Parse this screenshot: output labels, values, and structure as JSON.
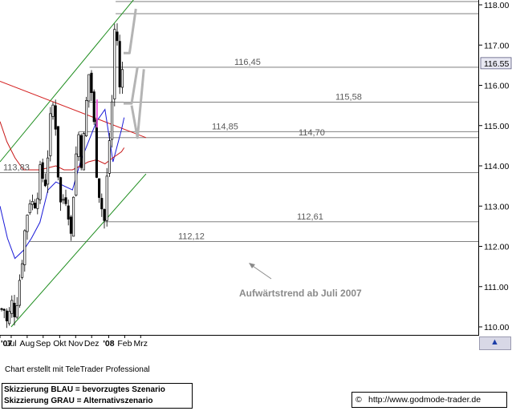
{
  "chart_data": {
    "type": "candlestick",
    "instrument_series": "Bund Future",
    "x_tick_labels": [
      "'07",
      "Jul",
      "Aug",
      "Sep",
      "Okt",
      "Nov",
      "Dez",
      "'08",
      "Feb",
      "Mrz"
    ],
    "y_tick_labels": [
      "110.00",
      "111.00",
      "112.00",
      "113.00",
      "114.00",
      "115.00",
      "116.00",
      "117.00",
      "118.00"
    ],
    "ylim": [
      109.9,
      118.1
    ],
    "last_price": "116.55",
    "price_path": [
      [
        "2007-06-18",
        110.4
      ],
      [
        "2007-06-25",
        110.5
      ],
      [
        "2007-07-02",
        110.0
      ],
      [
        "2007-07-09",
        110.6
      ],
      [
        "2007-07-16",
        110.4
      ],
      [
        "2007-07-23",
        111.0
      ],
      [
        "2007-07-30",
        111.8
      ],
      [
        "2007-08-06",
        112.7
      ],
      [
        "2007-08-13",
        113.2
      ],
      [
        "2007-08-20",
        113.0
      ],
      [
        "2007-08-27",
        113.4
      ],
      [
        "2007-09-03",
        113.9
      ],
      [
        "2007-09-10",
        113.5
      ],
      [
        "2007-09-17",
        114.5
      ],
      [
        "2007-09-24",
        115.6
      ],
      [
        "2007-10-01",
        115.0
      ],
      [
        "2007-10-08",
        113.0
      ],
      [
        "2007-10-15",
        113.2
      ],
      [
        "2007-10-22",
        113.3
      ],
      [
        "2007-10-29",
        112.2
      ],
      [
        "2007-11-05",
        113.9
      ],
      [
        "2007-11-12",
        114.85
      ],
      [
        "2007-11-19",
        114.0
      ],
      [
        "2007-11-26",
        115.4
      ],
      [
        "2007-12-03",
        116.45
      ],
      [
        "2007-12-10",
        115.3
      ],
      [
        "2007-12-17",
        113.8
      ],
      [
        "2007-12-24",
        113.1
      ],
      [
        "2007-12-31",
        112.61
      ],
      [
        "2008-01-07",
        114.2
      ],
      [
        "2008-01-14",
        115.5
      ],
      [
        "2008-01-21",
        118.08
      ],
      [
        "2008-01-28",
        115.8
      ],
      [
        "2008-02-04",
        116.55
      ]
    ],
    "moving_averages": [
      {
        "name": "",
        "color": "#1a1ad8",
        "values": [
          [
            "2007-06-18",
            113.0
          ],
          [
            "2007-07-02",
            112.2
          ],
          [
            "2007-07-16",
            111.7
          ],
          [
            "2007-08-01",
            111.9
          ],
          [
            "2007-08-16",
            112.2
          ],
          [
            "2007-09-01",
            112.6
          ],
          [
            "2007-09-16",
            113.4
          ],
          [
            "2007-10-01",
            113.6
          ],
          [
            "2007-10-16",
            113.5
          ],
          [
            "2007-11-01",
            113.4
          ],
          [
            "2007-11-16",
            114.1
          ],
          [
            "2007-12-01",
            114.6
          ],
          [
            "2007-12-16",
            115.1
          ],
          [
            "2008-01-01",
            115.4
          ],
          [
            "2008-01-16",
            114.1
          ],
          [
            "2008-02-01",
            114.9
          ],
          [
            "2008-02-06",
            115.2
          ]
        ]
      },
      {
        "name": "",
        "color": "#c81818",
        "values": [
          [
            "2007-06-18",
            115.1
          ],
          [
            "2007-07-01",
            114.6
          ],
          [
            "2007-07-16",
            114.2
          ],
          [
            "2007-08-01",
            113.9
          ],
          [
            "2007-08-16",
            113.9
          ],
          [
            "2007-09-01",
            113.9
          ],
          [
            "2007-09-16",
            113.95
          ],
          [
            "2007-10-01",
            114.0
          ],
          [
            "2007-10-16",
            113.9
          ],
          [
            "2007-11-01",
            113.9
          ],
          [
            "2007-11-16",
            114.0
          ],
          [
            "2007-12-01",
            114.1
          ],
          [
            "2007-12-16",
            114.15
          ],
          [
            "2008-01-01",
            114.05
          ],
          [
            "2008-01-16",
            114.2
          ],
          [
            "2008-02-01",
            114.35
          ],
          [
            "2008-02-06",
            114.45
          ]
        ]
      }
    ],
    "trend_lines": [
      {
        "color": "#1c8c1c",
        "points": [
          [
            "2007-06-18",
            114.1
          ],
          [
            "2008-03-18",
            118.5
          ]
        ]
      },
      {
        "color": "#1c8c1c",
        "points": [
          [
            "2007-07-09",
            110.0
          ],
          [
            "2008-03-18",
            113.8
          ]
        ]
      },
      {
        "color": "#d42020",
        "points": [
          [
            "2007-06-18",
            116.1
          ],
          [
            "2008-03-18",
            114.7
          ]
        ]
      }
    ],
    "horizontal_levels": [
      {
        "value": 118.08,
        "label": "118.08",
        "start": "2008-01-21"
      },
      {
        "value": 117.78,
        "label": "",
        "start": "2008-01-21"
      },
      {
        "value": 116.45,
        "label": "116,45",
        "start": "2007-12-03"
      },
      {
        "value": 115.58,
        "label": "115,58",
        "start": "2007-12-03"
      },
      {
        "value": 114.85,
        "label": "114,85",
        "start": "2007-11-12"
      },
      {
        "value": 114.7,
        "label": "114,70",
        "start": "2007-12-17"
      },
      {
        "value": 113.83,
        "label": "113,83",
        "start": "2007-06-18"
      },
      {
        "value": 112.61,
        "label": "112,61",
        "start": "2007-12-31"
      },
      {
        "value": 112.12,
        "label": "112,12",
        "start": "2007-08-13"
      }
    ],
    "scenario_arrows": [
      {
        "color": "#b4b4b4",
        "points": [
          [
            "2008-02-05",
            116.8
          ],
          [
            "2008-02-16",
            116.8
          ],
          [
            "2008-02-28",
            117.9
          ]
        ]
      },
      {
        "color": "#b4b4b4",
        "points": [
          [
            "2008-02-05",
            115.55
          ],
          [
            "2008-02-20",
            115.55
          ],
          [
            "2008-03-02",
            116.45
          ]
        ]
      }
    ],
    "annotation": "Aufwärtstrend ab Juli 2007",
    "annotation_color": "#8a8a8a"
  },
  "footer": {
    "credit": "Chart erstellt mit TeleTrader Professional",
    "legend_line1": "Skizzierung BLAU = bevorzugtes Szenario",
    "legend_line2": "Skizzierung GRAU = Alternativszenario",
    "copyright_symbol": "©",
    "url": "http://www.godmode-trader.de"
  },
  "corner_button_icon": "up-arrow-icon"
}
